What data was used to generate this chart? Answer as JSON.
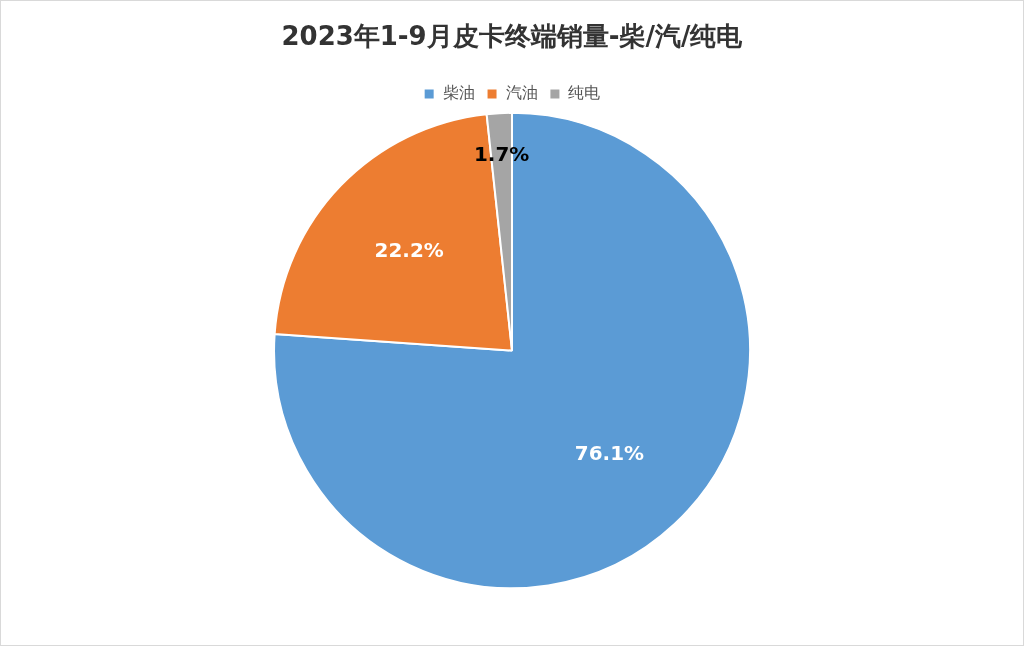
{
  "chart_data": {
    "type": "pie",
    "title": "2023年1-9月皮卡终端销量-柴/汽/纯电",
    "categories": [
      "柴油",
      "汽油",
      "纯电"
    ],
    "values": [
      76.1,
      22.2,
      1.7
    ],
    "colors": [
      "#5b9bd5",
      "#ed7d31",
      "#a5a5a5"
    ],
    "value_labels": [
      "76.1%",
      "22.2%",
      "1.7%"
    ],
    "legend": "top"
  }
}
